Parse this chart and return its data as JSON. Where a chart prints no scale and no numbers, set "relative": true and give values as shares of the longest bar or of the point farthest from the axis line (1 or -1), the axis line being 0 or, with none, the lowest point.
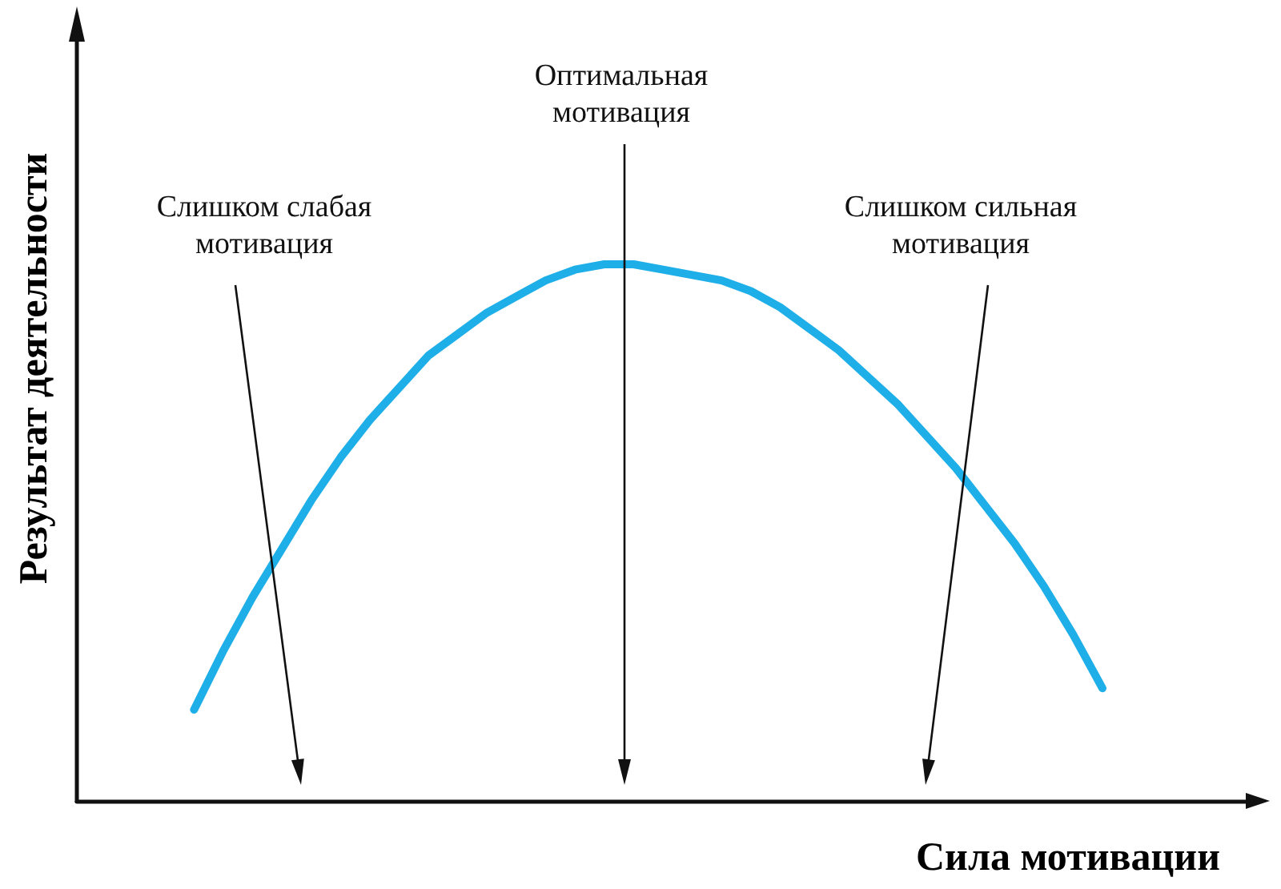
{
  "chart_data": {
    "type": "line",
    "relative": true,
    "xlabel": "Сила мотивации",
    "ylabel": "Результат деятельности",
    "categories": [
      null,
      null,
      null,
      null,
      null,
      null,
      null,
      null,
      null,
      null,
      null,
      null,
      null,
      null,
      null,
      null,
      null,
      null,
      null,
      null,
      null,
      null,
      null,
      null,
      null,
      null,
      null,
      null,
      null,
      null,
      null,
      null,
      null,
      null,
      null,
      null,
      null,
      null,
      null,
      null,
      null
    ],
    "series": [
      {
        "color": "#1eaee8",
        "values": [
          null,
          null,
          null,
          null,
          0.17,
          0.28,
          0.38,
          0.47,
          0.56,
          0.64,
          0.71,
          0.77,
          0.83,
          0.87,
          0.91,
          0.94,
          0.97,
          0.99,
          1.0,
          1.0,
          0.99,
          0.98,
          0.97,
          0.95,
          0.92,
          0.88,
          0.84,
          0.79,
          0.74,
          0.68,
          0.62,
          0.55,
          0.48,
          0.4,
          0.31,
          0.21,
          null,
          null,
          null,
          null,
          null
        ]
      }
    ],
    "annotations": [
      "Слишком слабая\nмотивация",
      "Оптимальная\nмотивация",
      "Слишком сильная\nмотивация"
    ],
    "marker": "none",
    "line_style": "solid",
    "grid": false
  }
}
